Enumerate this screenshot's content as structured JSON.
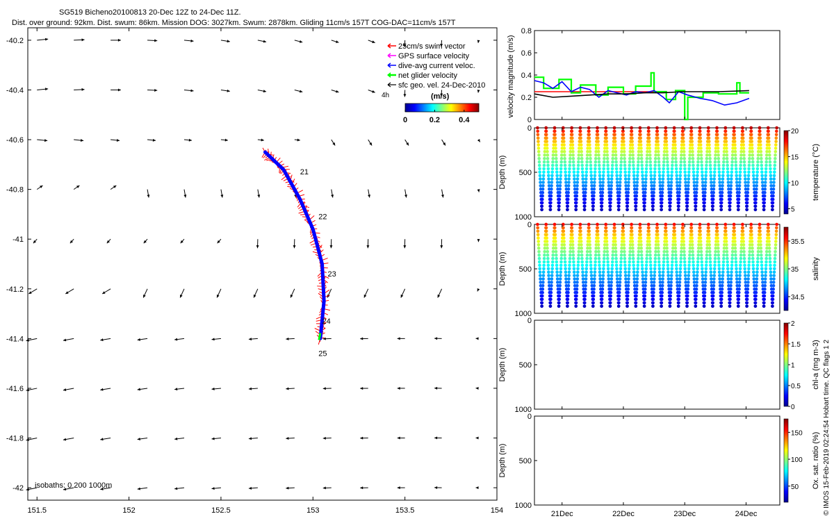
{
  "title_line1": "SG519 Bicheno20100813 20-Dec 12Z to 24-Dec 11Z.",
  "title_line2": "Dist. over ground: 92km. Dist. swum: 86km. Mission DOG: 3027km. Swum: 2878km. Gliding 11cm/s 157T COG-DAC=11cm/s 157T",
  "credit": "© IMOS 15-Feb-2019 02:24:54 Hobart time. QC flags 1  2",
  "colors": {
    "swim": "#ff0000",
    "gps": "#ff00ff",
    "dac": "#0000ff",
    "net": "#00ff00",
    "geo": "#000000"
  },
  "chart_data": [
    {
      "type": "scatter",
      "id": "map",
      "xlim": [
        151.45,
        154.0
      ],
      "ylim": [
        -42.05,
        -40.15
      ],
      "xticks": [
        "151.5",
        "152",
        "152.5",
        "153",
        "153.5",
        "154"
      ],
      "yticks": [
        "-40.2",
        "-40.4",
        "-40.6",
        "-40.8",
        "-41",
        "-41.2",
        "-41.4",
        "-41.6",
        "-41.8",
        "-42"
      ],
      "legend": {
        "position": "top-right",
        "entries": [
          "25cm/s swim vector",
          "GPS surface velocity",
          "dive-avg current veloc.",
          "net glider velocity",
          "sfc geo. vel. 24-Dec-2010"
        ]
      },
      "colorbar": {
        "label": "(m/s)",
        "ticks": [
          "0",
          "0.2",
          "0.4"
        ],
        "range": [
          0,
          0.5
        ]
      },
      "hour_label": "4h",
      "isobaths_label": "isobaths: 0   200  1000m",
      "track_day_labels": [
        {
          "label": "21",
          "lon": 152.93,
          "lat": -40.74
        },
        {
          "label": "22",
          "lon": 153.03,
          "lat": -40.92
        },
        {
          "label": "23",
          "lon": 153.08,
          "lat": -41.15
        },
        {
          "label": "24",
          "lon": 153.05,
          "lat": -41.34
        },
        {
          "label": "25",
          "lon": 153.03,
          "lat": -41.47
        }
      ],
      "track": [
        [
          152.74,
          -40.65
        ],
        [
          152.84,
          -40.72
        ],
        [
          152.93,
          -40.84
        ],
        [
          153.0,
          -40.96
        ],
        [
          153.05,
          -41.1
        ],
        [
          153.06,
          -41.25
        ],
        [
          153.04,
          -41.4
        ]
      ],
      "geo_lons": [
        151.5,
        151.7,
        151.9,
        152.1,
        152.3,
        152.5,
        152.7,
        152.9,
        153.1,
        153.3,
        153.5,
        153.7,
        153.9
      ],
      "geo_lats": [
        -40.2,
        -40.4,
        -40.6,
        -40.8,
        -41.0,
        -41.2,
        -41.4,
        -41.6,
        -41.8,
        -42.0
      ]
    },
    {
      "type": "line",
      "id": "velocity",
      "x": [
        "21Dec",
        "22Dec",
        "23Dec",
        "24Dec"
      ],
      "ylabel": "velocity magnitude (m/s)",
      "ylim": [
        0,
        0.8
      ],
      "yticks": [
        "0",
        "0.2",
        "0.4",
        "0.6",
        "0.8"
      ],
      "series": [
        {
          "color": "#ff0000",
          "values": [
            [
              0.0,
              0.25
            ],
            [
              2.0,
              0.25
            ]
          ]
        },
        {
          "color": "#00ff00",
          "values": [
            [
              0.0,
              0.38
            ],
            [
              0.15,
              0.38
            ],
            [
              0.15,
              0.28
            ],
            [
              0.4,
              0.28
            ],
            [
              0.4,
              0.36
            ],
            [
              0.6,
              0.36
            ],
            [
              0.6,
              0.24
            ],
            [
              0.75,
              0.24
            ],
            [
              0.75,
              0.31
            ],
            [
              1.0,
              0.31
            ],
            [
              1.0,
              0.22
            ],
            [
              1.2,
              0.22
            ],
            [
              1.2,
              0.29
            ],
            [
              1.45,
              0.29
            ],
            [
              1.45,
              0.23
            ],
            [
              1.65,
              0.23
            ],
            [
              1.65,
              0.3
            ],
            [
              1.9,
              0.3
            ],
            [
              1.9,
              0.42
            ],
            [
              1.95,
              0.42
            ],
            [
              1.95,
              0.25
            ],
            [
              2.15,
              0.25
            ],
            [
              2.15,
              0.18
            ],
            [
              2.3,
              0.18
            ],
            [
              2.3,
              0.26
            ],
            [
              2.45,
              0.26
            ],
            [
              2.45,
              0.0
            ],
            [
              2.5,
              0.0
            ],
            [
              2.5,
              0.2
            ],
            [
              2.75,
              0.2
            ],
            [
              2.75,
              0.24
            ],
            [
              3.0,
              0.24
            ],
            [
              3.0,
              0.23
            ],
            [
              3.3,
              0.23
            ],
            [
              3.3,
              0.33
            ],
            [
              3.35,
              0.33
            ],
            [
              3.35,
              0.24
            ],
            [
              3.5,
              0.24
            ]
          ]
        },
        {
          "color": "#0000ff",
          "values": [
            [
              0.0,
              0.35
            ],
            [
              0.15,
              0.33
            ],
            [
              0.3,
              0.28
            ],
            [
              0.45,
              0.34
            ],
            [
              0.6,
              0.25
            ],
            [
              0.75,
              0.29
            ],
            [
              0.9,
              0.27
            ],
            [
              1.05,
              0.2
            ],
            [
              1.2,
              0.26
            ],
            [
              1.35,
              0.24
            ],
            [
              1.5,
              0.22
            ],
            [
              1.65,
              0.25
            ],
            [
              1.8,
              0.24
            ],
            [
              1.95,
              0.26
            ],
            [
              2.1,
              0.2
            ],
            [
              2.2,
              0.15
            ],
            [
              2.35,
              0.25
            ],
            [
              2.5,
              0.22
            ],
            [
              2.7,
              0.19
            ],
            [
              2.9,
              0.17
            ],
            [
              3.1,
              0.13
            ],
            [
              3.3,
              0.15
            ],
            [
              3.5,
              0.19
            ]
          ]
        },
        {
          "color": "#000000",
          "values": [
            [
              0.0,
              0.23
            ],
            [
              0.3,
              0.2
            ],
            [
              0.6,
              0.21
            ],
            [
              0.9,
              0.22
            ],
            [
              1.2,
              0.23
            ],
            [
              1.5,
              0.23
            ],
            [
              1.8,
              0.24
            ],
            [
              2.1,
              0.24
            ],
            [
              2.4,
              0.25
            ],
            [
              2.7,
              0.25
            ],
            [
              3.0,
              0.25
            ],
            [
              3.5,
              0.26
            ]
          ]
        }
      ]
    },
    {
      "type": "scatter",
      "id": "temperature",
      "x": [
        "21Dec",
        "22Dec",
        "23Dec",
        "24Dec"
      ],
      "ylabel": "Depth (m)",
      "yticks": [
        "0",
        "500",
        "1000"
      ],
      "ylim": [
        1000,
        0
      ],
      "colorbar": {
        "label": "temperature (°C)",
        "ticks": [
          "5",
          "10",
          "15",
          "20"
        ],
        "range": [
          4,
          20
        ]
      },
      "dives": 28,
      "max_depth": 920,
      "surface_value": 19,
      "bottom_value": 5
    },
    {
      "type": "scatter",
      "id": "salinity",
      "x": [
        "21Dec",
        "22Dec",
        "23Dec",
        "24Dec"
      ],
      "ylabel": "Depth (m)",
      "yticks": [
        "0",
        "500",
        "1000"
      ],
      "ylim": [
        1000,
        0
      ],
      "colorbar": {
        "label": "salinity",
        "ticks": [
          "34.5",
          "35",
          "35.5"
        ],
        "range": [
          34.25,
          35.75
        ]
      },
      "dives": 28,
      "max_depth": 920,
      "surface_value": 35.55,
      "bottom_value": 34.35
    },
    {
      "type": "scatter",
      "id": "chla",
      "x": [
        "21Dec",
        "22Dec",
        "23Dec",
        "24Dec"
      ],
      "ylabel": "Depth (m)",
      "yticks": [
        "0",
        "500",
        "1000"
      ],
      "ylim": [
        1000,
        0
      ],
      "colorbar": {
        "label": "chl-a (mg m-3)",
        "ticks": [
          "0",
          "0.5",
          "1",
          "1.5",
          "2"
        ],
        "range": [
          0,
          2
        ]
      }
    },
    {
      "type": "scatter",
      "id": "oxygen",
      "x": [
        "21Dec",
        "22Dec",
        "23Dec",
        "24Dec"
      ],
      "ylabel": "Depth (m)",
      "yticks": [
        "0",
        "500",
        "1000"
      ],
      "ylim": [
        1000,
        0
      ],
      "colorbar": {
        "label": "Ox. sat. ratio (%)",
        "ticks": [
          "50",
          "100",
          "150"
        ],
        "range": [
          20,
          175
        ]
      }
    }
  ]
}
